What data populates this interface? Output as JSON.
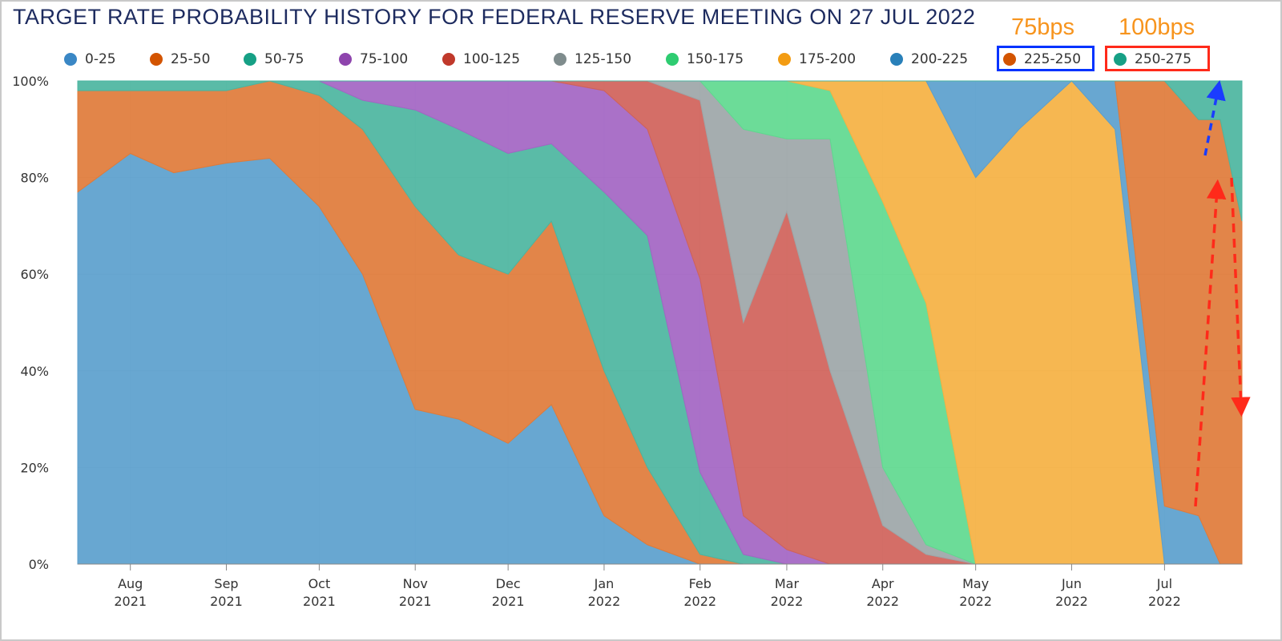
{
  "chart_data": {
    "type": "area",
    "stacked": true,
    "percent": true,
    "title": "TARGET RATE PROBABILITY HISTORY FOR FEDERAL RESERVE MEETING ON 27 JUL 2022",
    "xlabel": "",
    "ylabel": "",
    "ylim": [
      0,
      100
    ],
    "grid": true,
    "legend_position": "top",
    "y_ticks": [
      "0%",
      "20%",
      "40%",
      "60%",
      "80%",
      "100%"
    ],
    "x_ticks": [
      {
        "month": "Aug",
        "year": "2021"
      },
      {
        "month": "Sep",
        "year": "2021"
      },
      {
        "month": "Oct",
        "year": "2021"
      },
      {
        "month": "Nov",
        "year": "2021"
      },
      {
        "month": "Dec",
        "year": "2021"
      },
      {
        "month": "Jan",
        "year": "2022"
      },
      {
        "month": "Feb",
        "year": "2022"
      },
      {
        "month": "Mar",
        "year": "2022"
      },
      {
        "month": "Apr",
        "year": "2022"
      },
      {
        "month": "May",
        "year": "2022"
      },
      {
        "month": "Jun",
        "year": "2022"
      },
      {
        "month": "Jul",
        "year": "2022"
      }
    ],
    "x": [
      "2021-07-15",
      "2021-08-01",
      "2021-08-15",
      "2021-09-01",
      "2021-09-15",
      "2021-10-01",
      "2021-10-15",
      "2021-11-01",
      "2021-11-15",
      "2021-12-01",
      "2021-12-15",
      "2022-01-01",
      "2022-01-15",
      "2022-02-01",
      "2022-02-15",
      "2022-03-01",
      "2022-03-15",
      "2022-04-01",
      "2022-04-15",
      "2022-05-01",
      "2022-05-15",
      "2022-06-01",
      "2022-06-15",
      "2022-07-01",
      "2022-07-12",
      "2022-07-19",
      "2022-07-26"
    ],
    "series": [
      {
        "name": "0-25",
        "color": "#5b9fcd",
        "values": [
          77,
          85,
          81,
          83,
          84,
          74,
          60,
          32,
          30,
          25,
          33,
          10,
          4,
          0,
          0,
          0,
          0,
          0,
          0,
          0,
          0,
          0,
          0,
          0,
          0,
          0,
          0
        ]
      },
      {
        "name": "25-50",
        "color": "#e07b39",
        "values": [
          21,
          13,
          17,
          15,
          16,
          23,
          30,
          42,
          34,
          35,
          38,
          30,
          16,
          2,
          0,
          0,
          0,
          0,
          0,
          0,
          0,
          0,
          0,
          0,
          0,
          0,
          0
        ]
      },
      {
        "name": "50-75",
        "color": "#4cb5a0",
        "values": [
          2,
          2,
          2,
          2,
          0,
          3,
          6,
          20,
          26,
          25,
          16,
          37,
          48,
          17,
          2,
          0,
          0,
          0,
          0,
          0,
          0,
          0,
          0,
          0,
          0,
          0,
          0
        ]
      },
      {
        "name": "75-100",
        "color": "#a365c3",
        "values": [
          0,
          0,
          0,
          0,
          0,
          0,
          4,
          6,
          10,
          15,
          13,
          21,
          22,
          40,
          8,
          3,
          0,
          0,
          0,
          0,
          0,
          0,
          0,
          0,
          0,
          0,
          0
        ]
      },
      {
        "name": "100-125",
        "color": "#d0625a",
        "values": [
          0,
          0,
          0,
          0,
          0,
          0,
          0,
          0,
          0,
          0,
          0,
          2,
          10,
          37,
          40,
          70,
          40,
          8,
          2,
          0,
          0,
          0,
          0,
          0,
          0,
          0,
          0
        ]
      },
      {
        "name": "125-150",
        "color": "#9da6a8",
        "values": [
          0,
          0,
          0,
          0,
          0,
          0,
          0,
          0,
          0,
          0,
          0,
          0,
          0,
          4,
          40,
          15,
          48,
          12,
          2,
          0,
          0,
          0,
          0,
          0,
          0,
          0,
          0
        ]
      },
      {
        "name": "150-175",
        "color": "#5fd98f",
        "values": [
          0,
          0,
          0,
          0,
          0,
          0,
          0,
          0,
          0,
          0,
          0,
          0,
          0,
          0,
          10,
          12,
          10,
          55,
          50,
          0,
          0,
          0,
          0,
          0,
          0,
          0,
          0
        ]
      },
      {
        "name": "175-200",
        "color": "#f5b142",
        "values": [
          0,
          0,
          0,
          0,
          0,
          0,
          0,
          0,
          0,
          0,
          0,
          0,
          0,
          0,
          0,
          0,
          2,
          25,
          46,
          80,
          90,
          100,
          90,
          0,
          0,
          0,
          0
        ]
      },
      {
        "name": "200-225",
        "color": "#5b9fcd",
        "values": [
          0,
          0,
          0,
          0,
          0,
          0,
          0,
          0,
          0,
          0,
          0,
          0,
          0,
          0,
          0,
          0,
          0,
          0,
          0,
          20,
          10,
          0,
          10,
          12,
          10,
          0,
          0
        ]
      },
      {
        "name": "225-250",
        "color": "#e07b39",
        "values": [
          0,
          0,
          0,
          0,
          0,
          0,
          0,
          0,
          0,
          0,
          0,
          0,
          0,
          0,
          0,
          0,
          0,
          0,
          0,
          0,
          0,
          0,
          0,
          88,
          82,
          92,
          71
        ]
      },
      {
        "name": "250-275",
        "color": "#4cb5a0",
        "values": [
          0,
          0,
          0,
          0,
          0,
          0,
          0,
          0,
          0,
          0,
          0,
          0,
          0,
          0,
          0,
          0,
          0,
          0,
          0,
          0,
          0,
          0,
          0,
          0,
          8,
          8,
          29
        ]
      }
    ],
    "annotations": [
      {
        "text": "75bps",
        "target_series": "225-250",
        "box_color": "#0033ff"
      },
      {
        "text": "100bps",
        "target_series": "250-275",
        "box_color": "#ff2a1a"
      }
    ]
  }
}
